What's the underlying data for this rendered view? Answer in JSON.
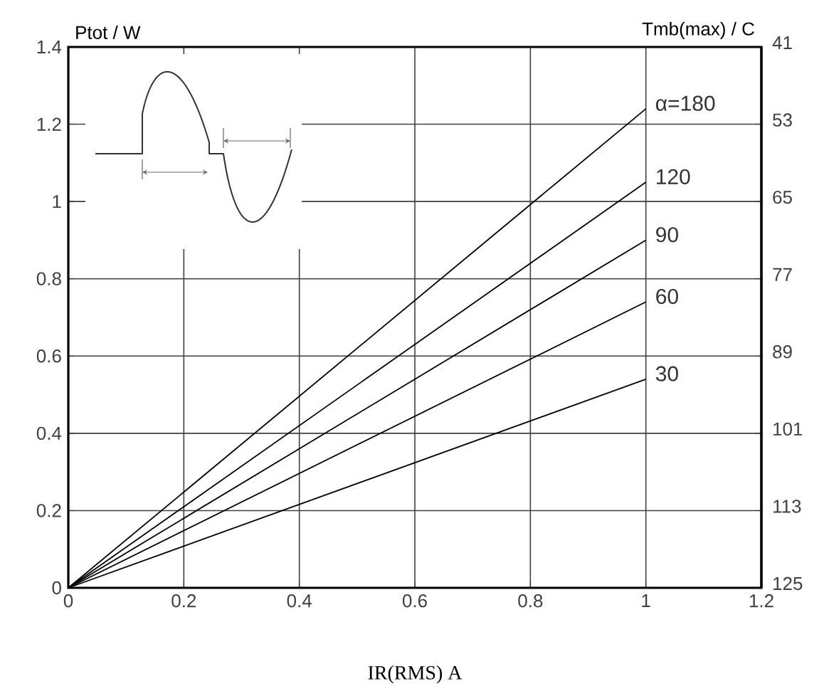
{
  "chart_data": {
    "type": "line",
    "xlabel": "IR(RMS) A",
    "ylabel": "Ptot / W",
    "y2label": "Tmb(max) / C",
    "xlim": [
      0,
      1.2
    ],
    "xticks": [
      0,
      0.2,
      0.4,
      0.6,
      0.8,
      1,
      1.2
    ],
    "ylim": [
      0,
      1.4
    ],
    "yticks": [
      0,
      0.2,
      0.4,
      0.6,
      0.8,
      1,
      1.2,
      1.4
    ],
    "y2lim": [
      125,
      41
    ],
    "y2ticks": [
      125,
      113,
      101,
      89,
      77,
      65,
      53,
      41
    ],
    "grid": true,
    "legend": false,
    "marker": "none",
    "line_style": "solid",
    "x": [
      0,
      1
    ],
    "series": [
      {
        "name": "α=180",
        "color": "#000000",
        "values": [
          0,
          1.24
        ]
      },
      {
        "name": "120",
        "color": "#000000",
        "values": [
          0,
          1.05
        ]
      },
      {
        "name": "90",
        "color": "#000000",
        "values": [
          0,
          0.9
        ]
      },
      {
        "name": "60",
        "color": "#000000",
        "values": [
          0,
          0.74
        ]
      },
      {
        "name": "30",
        "color": "#000000",
        "values": [
          0,
          0.54
        ]
      }
    ]
  }
}
